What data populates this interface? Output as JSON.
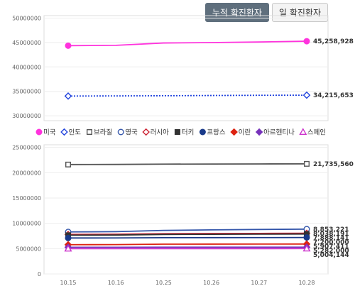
{
  "tabs": [
    {
      "label": "누적 확진환자",
      "active": true
    },
    {
      "label": "일 확진환자",
      "active": false
    }
  ],
  "chart_data": {
    "type": "line",
    "x": [
      "10.15",
      "10.16",
      "10.25",
      "10.26",
      "10.27",
      "10.28"
    ],
    "panels": [
      {
        "yticks": [
          30000000,
          35000000,
          40000000,
          45000000,
          50000000
        ],
        "ylim": [
          29000000,
          50500000
        ]
      },
      {
        "yticks": [
          0,
          5000000,
          10000000,
          15000000,
          20000000,
          25000000
        ],
        "ylim": [
          0,
          25500000
        ]
      }
    ],
    "series": [
      {
        "name": "미국",
        "color": "#ff33dd",
        "marker": "circle-filled",
        "dash": "",
        "panel": 0,
        "values": [
          44350000,
          44420000,
          44900000,
          44980000,
          45100000,
          45258928
        ],
        "end_label": "45,258,928"
      },
      {
        "name": "인도",
        "color": "#2244dd",
        "marker": "diamond-open",
        "dash": "2,2",
        "panel": 0,
        "values": [
          34037000,
          34067000,
          34100000,
          34150000,
          34190000,
          34215653
        ],
        "end_label": "34,215,653"
      },
      {
        "name": "브라질",
        "color": "#555555",
        "marker": "square-open",
        "dash": "",
        "panel": 1,
        "values": [
          21600000,
          21620000,
          21680000,
          21700000,
          21720000,
          21735560
        ],
        "end_label": "21,735,560"
      },
      {
        "name": "영국",
        "color": "#3355aa",
        "marker": "circle-open",
        "dash": "",
        "panel": 1,
        "values": [
          8300000,
          8350000,
          8600000,
          8700000,
          8780000,
          8853221
        ],
        "end_label": "8,853,221"
      },
      {
        "name": "러시아",
        "color": "#cc2233",
        "marker": "diamond-open",
        "dash": "",
        "panel": 1,
        "values": [
          7800000,
          7850000,
          7950000,
          7980000,
          8000000,
          8038191
        ],
        "end_label": "8,038,191"
      },
      {
        "name": "터키",
        "color": "#333333",
        "marker": "square-filled",
        "dash": "",
        "panel": 1,
        "values": [
          7650000,
          7680000,
          7800000,
          7830000,
          7860000,
          7888141
        ],
        "end_label": "7,888,141"
      },
      {
        "name": "프랑스",
        "color": "#1a3a8a",
        "marker": "circle-filled",
        "dash": "",
        "panel": 1,
        "values": [
          7100000,
          7110000,
          7160000,
          7170000,
          7180000,
          7200000
        ],
        "end_label": "7,200,000"
      },
      {
        "name": "이란",
        "color": "#dd2211",
        "marker": "diamond-filled",
        "dash": "",
        "panel": 1,
        "values": [
          5780000,
          5800000,
          5880000,
          5890000,
          5900000,
          5907411
        ],
        "end_label": "5,907,411"
      },
      {
        "name": "아르헨티나",
        "color": "#7733bb",
        "marker": "diamond-filled",
        "dash": "",
        "panel": 1,
        "values": [
          5270000,
          5275000,
          5280000,
          5280000,
          5281000,
          5282000
        ],
        "end_label": "5,282,000"
      },
      {
        "name": "스페인",
        "color": "#cc33cc",
        "marker": "triangle-open",
        "dash": "",
        "panel": 1,
        "values": [
          4990000,
          4995000,
          5000000,
          5002000,
          5003000,
          5004144
        ],
        "end_label": "5,004,144"
      }
    ]
  }
}
